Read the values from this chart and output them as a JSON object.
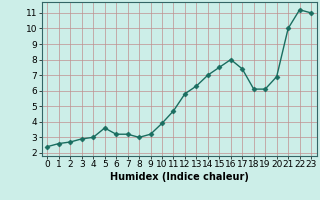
{
  "x": [
    0,
    1,
    2,
    3,
    4,
    5,
    6,
    7,
    8,
    9,
    10,
    11,
    12,
    13,
    14,
    15,
    16,
    17,
    18,
    19,
    20,
    21,
    22,
    23
  ],
  "y": [
    2.4,
    2.6,
    2.7,
    2.9,
    3.0,
    3.6,
    3.2,
    3.2,
    3.0,
    3.2,
    3.9,
    4.7,
    5.8,
    6.3,
    7.0,
    7.5,
    8.0,
    7.4,
    6.1,
    6.1,
    6.9,
    10.0,
    11.2,
    11.0
  ],
  "xlabel": "Humidex (Indice chaleur)",
  "ylim_min": 1.8,
  "ylim_max": 11.7,
  "xlim_min": -0.5,
  "xlim_max": 23.5,
  "yticks": [
    2,
    3,
    4,
    5,
    6,
    7,
    8,
    9,
    10,
    11
  ],
  "xticks": [
    0,
    1,
    2,
    3,
    4,
    5,
    6,
    7,
    8,
    9,
    10,
    11,
    12,
    13,
    14,
    15,
    16,
    17,
    18,
    19,
    20,
    21,
    22,
    23
  ],
  "line_color": "#1a6e60",
  "marker": "D",
  "marker_size": 2.5,
  "bg_color": "#cceee8",
  "grid_color": "#c09090",
  "xlabel_fontsize": 7,
  "tick_fontsize": 6.5,
  "linewidth": 1.0
}
